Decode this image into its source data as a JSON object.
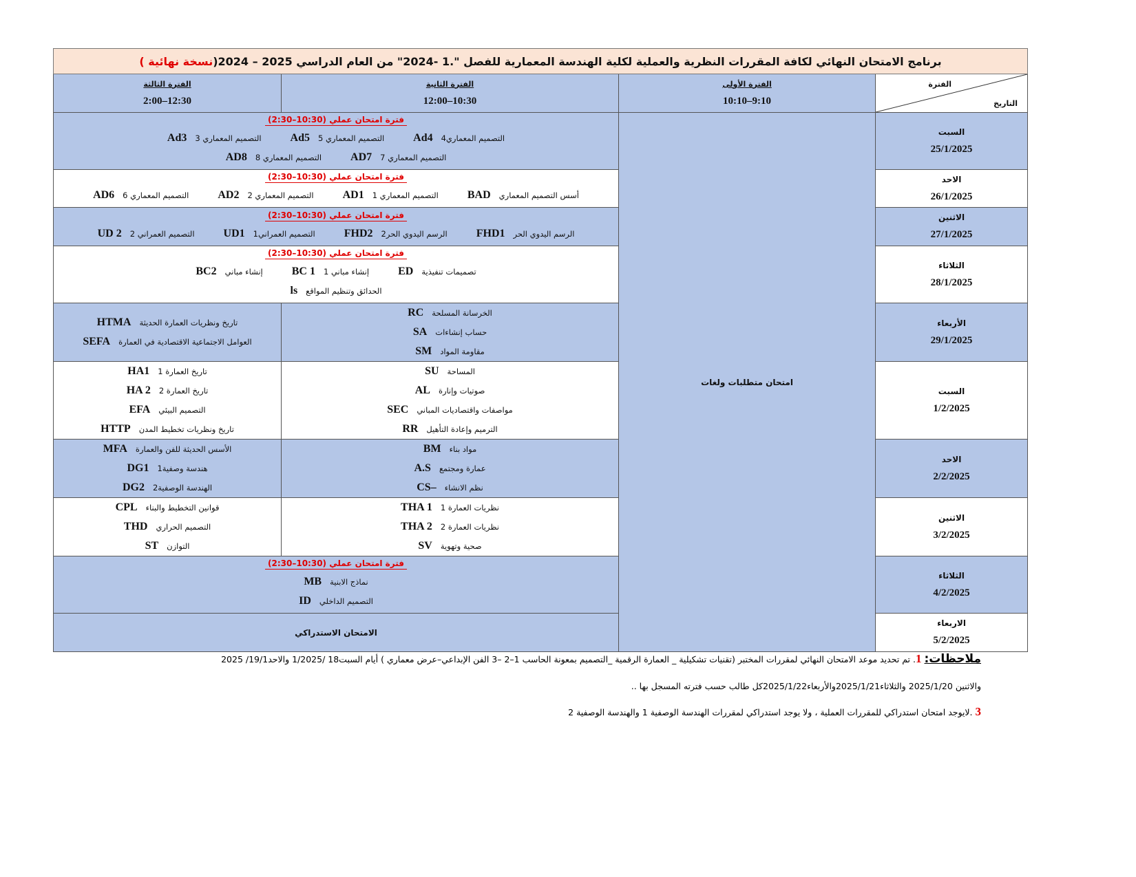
{
  "title": {
    "main": "برنامج الامتحان النهائي  لكافة المقررات النظرية والعملية لكلية الهندسة المعمارية للفصل \".1 -2024\" من العام الدراسي 2025 – 2024(",
    "status": "نسخة نهائية )"
  },
  "header": {
    "corner_period": "الفترة",
    "corner_date": "التاريخ",
    "periods": [
      {
        "label": "الفترة الأولى",
        "time": "9:10–10:10"
      },
      {
        "label": "الفترة الثانية",
        "time": "10:30–12:00"
      },
      {
        "label": "الفترة الثالثة",
        "time": "12:30–2:00"
      }
    ]
  },
  "practical_label": "فترة امتحان عملي (10:30–2:30)",
  "period1_all": "امتحان متطلبات ولغات",
  "rows": [
    {
      "day": "السبت",
      "date": "25/1/2025",
      "lines": [
        [
          {
            "ar": "التصميم المعماري4",
            "code": "Ad4"
          },
          {
            "ar": "التصميم المعماري 5",
            "code": "Ad5"
          },
          {
            "ar": "التصميم المعماري 3",
            "code": "Ad3"
          }
        ],
        [
          {
            "ar": "التصميم المعماري 7",
            "code": "AD7"
          },
          {
            "ar": "التصميم المعماري 8",
            "code": "AD8"
          }
        ]
      ]
    },
    {
      "day": "الاحد",
      "date": "26/1/2025",
      "lines": [
        [
          {
            "ar": "أسس التصميم المعماري",
            "code": "BAD"
          },
          {
            "ar": "التصميم المعماري 1",
            "code": "AD1"
          },
          {
            "ar": "التصميم المعماري 2",
            "code": "AD2"
          },
          {
            "ar": "التصميم المعماري 6",
            "code": "AD6"
          }
        ]
      ]
    },
    {
      "day": "الاثنين",
      "date": "27/1/2025",
      "lines": [
        [
          {
            "ar": "الرسم اليدوي الحر",
            "code": "FHD1"
          },
          {
            "ar": "الرسم اليدوي الحر2",
            "code": "FHD2"
          },
          {
            "ar": "التصميم العمراني1",
            "code": "UD1"
          },
          {
            "ar": "التصميم العمراني 2",
            "code": "UD 2"
          }
        ]
      ]
    },
    {
      "day": "الثلاثاء",
      "date": "28/1/2025",
      "lines": [
        [
          {
            "ar": "تصميمات تنفيذية",
            "code": "ED"
          },
          {
            "ar": "إنشاء مباني 1",
            "code": "BC 1"
          },
          {
            "ar": "إنشاء مباني",
            "code": "BC2"
          }
        ],
        [
          {
            "ar": "الحدائق وتنظيم المواقع",
            "code": "ls"
          }
        ]
      ]
    },
    {
      "day": "الأربعاء",
      "date": "29/1/2025",
      "p2": [
        {
          "ar": "الخرسانة المسلحة",
          "code": "RC"
        },
        {
          "ar": "حساب إنشاءات",
          "code": "SA"
        },
        {
          "ar": "مقاومة المواد",
          "code": "SM"
        }
      ],
      "p3": [
        {
          "ar": "تاريخ ونظريات العمارة الحديثة",
          "code": "HTMA"
        },
        {
          "ar": "العوامل الاجتماعية الاقتصادية في العمارة",
          "code": "SEFA"
        }
      ]
    },
    {
      "day": "السبت",
      "date": "1/2/2025",
      "p2": [
        {
          "ar": "المساحة",
          "code": "SU"
        },
        {
          "ar": "صوتيات وإنارة",
          "code": "AL"
        },
        {
          "ar": "مواصفات واقتصاديات المباني",
          "code": "SEC"
        },
        {
          "ar": "الترميم وإعادة التأهيل",
          "code": "RR"
        }
      ],
      "p3": [
        {
          "ar": "تاريخ العمارة 1",
          "code": "HA1"
        },
        {
          "ar": "تاريخ العمارة 2",
          "code": "HA 2"
        },
        {
          "ar": "التصميم البيئي",
          "code": "EFA"
        },
        {
          "ar": "تاريخ ونظريات تخطيط المدن",
          "code": "HTTP"
        }
      ]
    },
    {
      "day": "الاحد",
      "date": "2/2/2025",
      "p2": [
        {
          "ar": "مواد بناء",
          "code": "BM"
        },
        {
          "ar": "عمارة ومجتمع",
          "code": "A.S"
        },
        {
          "ar": "نظم الانشاء",
          "code": "CS–"
        }
      ],
      "p3": [
        {
          "ar": "الأسس الحديثة للفن والعمارة",
          "code": "MFA"
        },
        {
          "ar": "هندسة وصفية1",
          "code": "DG1"
        },
        {
          "ar": "الهندسة الوصفية2",
          "code": "DG2"
        }
      ]
    },
    {
      "day": "الاثنين",
      "date": "3/2/2025",
      "p2": [
        {
          "ar": "نظريات العمارة 1",
          "code": "THA 1"
        },
        {
          "ar": "نظريات العمارة 2",
          "code": "THA 2"
        },
        {
          "ar": "صحية وتهوية",
          "code": "SV"
        }
      ],
      "p3": [
        {
          "ar": "قوانين التخطيط والبناء",
          "code": "CPL"
        },
        {
          "ar": "التصميم الحراري",
          "code": "THD"
        },
        {
          "ar": "التوازن",
          "code": "ST"
        }
      ]
    },
    {
      "day": "الثلاثاء",
      "date": "4/2/2025",
      "lines": [
        [
          {
            "ar": "نماذج الابنية",
            "code": "MB"
          }
        ],
        [
          {
            "ar": "التصميم الداخلي",
            "code": "ID"
          }
        ]
      ]
    },
    {
      "day": "الاربعاء",
      "date": "5/2/2025",
      "text": "الامتحان الاستدراكي"
    }
  ],
  "notes": {
    "heading": "ملاحظات:",
    "n1_num": "1",
    "n1": ". تم تحديد موعد الامتحان النهائي لمقررات المختبر (تقنيات تشكيلية _ العمارة الرقمية _التصميم بمعونة الحاسب 1–2 –3 الفن الإبداعي–عرض معماري ) أيام السبت18 /1/2025  والاحد19/1/ 2025",
    "n1_cont": "والاثنين 2025/1/20  والثلاثاء2025/1/21والأربعاء2025/1/22كل طالب حسب فترته المسجل بها ..",
    "n3_num": "3",
    "n3": " .لايوجد امتحان استدراكي للمقررات العملية ، ولا يوجد استدراكي لمقررات الهندسة الوصفية 1 والهندسة الوصفية 2"
  },
  "colors": {
    "header_blue": "#b4c6e7",
    "title_bg": "#fbe4d5",
    "accent_red": "#e00000"
  }
}
